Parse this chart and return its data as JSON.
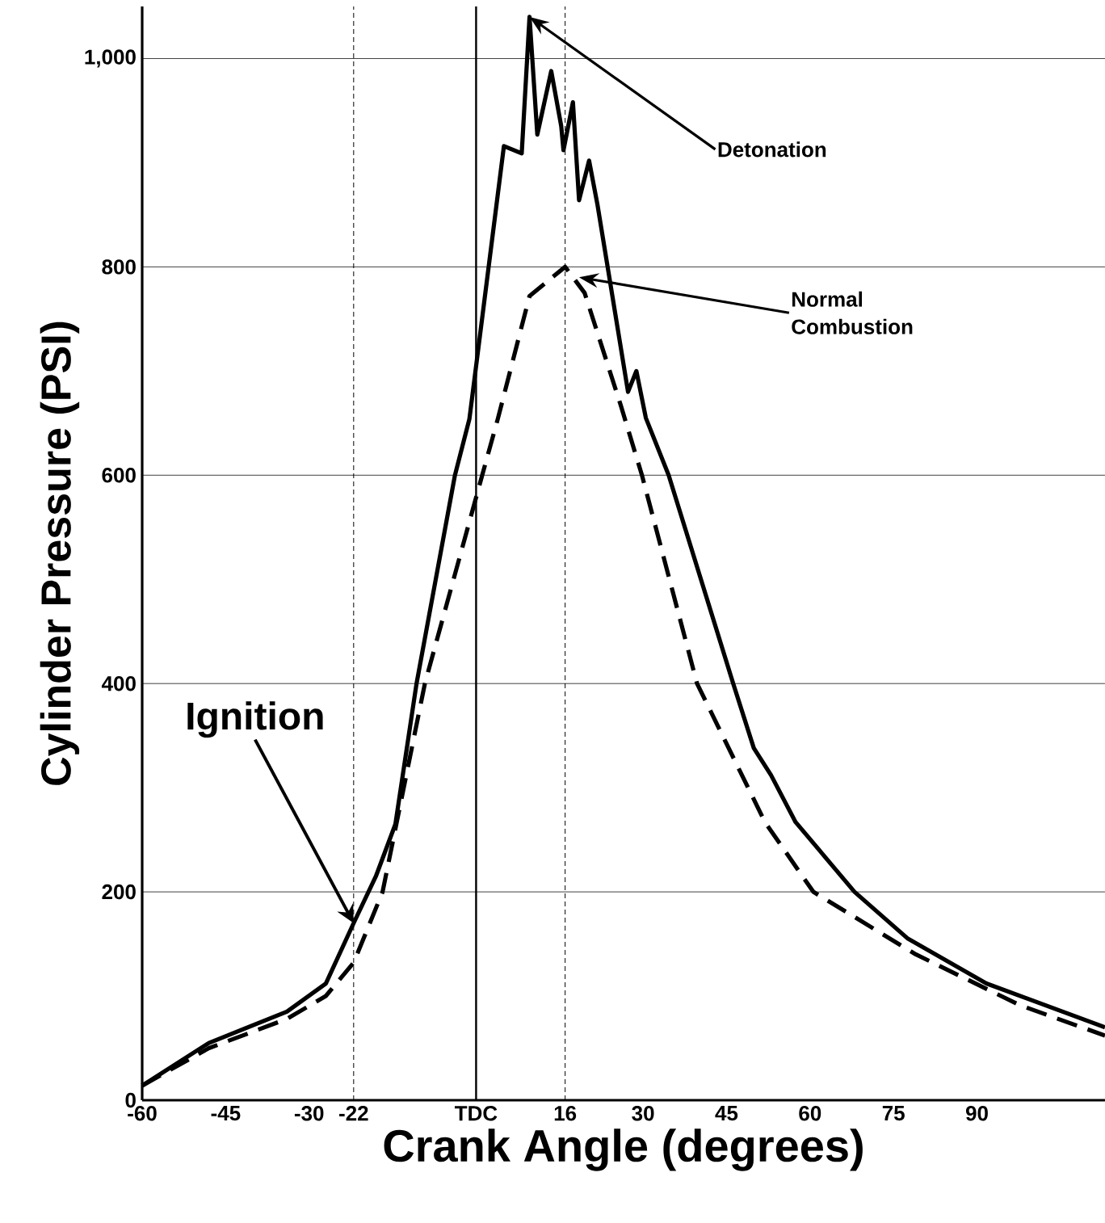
{
  "chart_data": {
    "type": "line",
    "xlabel": "Crank Angle (degrees)",
    "ylabel": "Cylinder Pressure (PSI)",
    "xlim": [
      -60,
      113
    ],
    "ylim": [
      0,
      1050
    ],
    "xticks": [
      -60,
      -45,
      -30,
      -22,
      {
        "value": 0,
        "label": "TDC"
      },
      16,
      30,
      45,
      60,
      75,
      90
    ],
    "yticks": [
      0,
      200,
      400,
      600,
      800,
      {
        "value": 1000,
        "label": "1,000"
      }
    ],
    "grid": "y",
    "marker": "none",
    "series": [
      {
        "color": "#000000",
        "line_style": "solid",
        "x": [
          -60,
          -48,
          -34,
          -27,
          -22,
          -18,
          -14.5,
          -10.7,
          -3.8,
          -1.2,
          5,
          8.2,
          9.6,
          11,
          13.5,
          15.3,
          15.7,
          17.4,
          18.5,
          20.3,
          21.8,
          27.3,
          28.8,
          30.5,
          34.6,
          46.2,
          49.9,
          53,
          57.4,
          68,
          77.6,
          91.7,
          113
        ],
        "values": [
          14,
          55,
          85,
          112,
          170,
          215,
          265,
          400,
          600,
          654,
          916,
          909,
          1040,
          927,
          988,
          935,
          912,
          958,
          864,
          902,
          860,
          680,
          700,
          655,
          600,
          400,
          338,
          312,
          267,
          200,
          155,
          112,
          70
        ]
      },
      {
        "color": "#000000",
        "line_style": "dashed",
        "x": [
          -60,
          -48,
          -34,
          -27,
          -22,
          -16.8,
          -9.2,
          1.1,
          3.9,
          9.6,
          16,
          19.5,
          26,
          29.8,
          39.7,
          51.9,
          60.6,
          79,
          97.8,
          113
        ],
        "values": [
          14,
          50,
          78,
          100,
          132,
          200,
          400,
          600,
          654,
          772,
          800,
          775,
          667,
          600,
          400,
          267,
          200,
          140,
          91,
          62
        ]
      }
    ],
    "ref_lines": [
      {
        "axis": "x",
        "value": -22,
        "line_style": "dashed"
      },
      {
        "axis": "x",
        "value": 0,
        "line_style": "solid"
      },
      {
        "axis": "x",
        "value": 16,
        "line_style": "dashed"
      }
    ],
    "annotations": [
      {
        "text": "Detonation",
        "x": 9.6,
        "y": 1040
      },
      {
        "text": "Normal Combustion",
        "x": 18.5,
        "y": 790
      },
      {
        "text": "Ignition",
        "x": -22,
        "y": 170
      }
    ]
  }
}
